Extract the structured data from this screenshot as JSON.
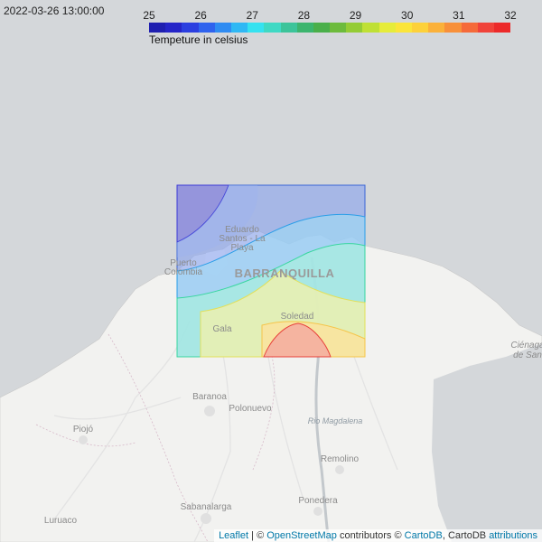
{
  "timestamp": "2022-03-26 13:00:00",
  "legend": {
    "title": "Tempeture in celsius",
    "ticks": [
      "25",
      "26",
      "27",
      "28",
      "29",
      "30",
      "31",
      "32"
    ],
    "colors": [
      "#1f1fb0",
      "#2525c8",
      "#2b3fe0",
      "#2f63ee",
      "#2f8cf2",
      "#2fb8f4",
      "#35e2f0",
      "#3fd9c4",
      "#3cc49a",
      "#3cb56e",
      "#4aaf4a",
      "#6dbb3c",
      "#94cc35",
      "#bfe035",
      "#e6ec3a",
      "#fbe53a",
      "#fdd13a",
      "#fbb13a",
      "#f8903a",
      "#f56a3a",
      "#f0433a",
      "#ec2a2a"
    ]
  },
  "map": {
    "places": {
      "barranquilla": "BARRANQUILLA",
      "eduardo": "Eduardo",
      "santos": "Santos - La",
      "playa": "Playa",
      "puerto": "Puerto",
      "colombia": "Colombia",
      "soledad": "Soledad",
      "gala": "Gala",
      "baranoa": "Baranoa",
      "polonuevo": "Polonuevo",
      "piojo": "Piojó",
      "rio": "Rio Magdalena",
      "remolino": "Remolino",
      "sabanalarga": "Sabanalarga",
      "ponedera": "Ponedera",
      "luruaco": "Luruaco",
      "cienaga1": "Ciénaga",
      "cienaga2": "de San"
    }
  },
  "attribution": {
    "leaflet": "Leaflet",
    "sep": " | © ",
    "osm": "OpenStreetMap",
    "contributors": " contributors © ",
    "cartodb": "CartoDB",
    "comma": ", CartoDB ",
    "attributions": "attributions"
  }
}
